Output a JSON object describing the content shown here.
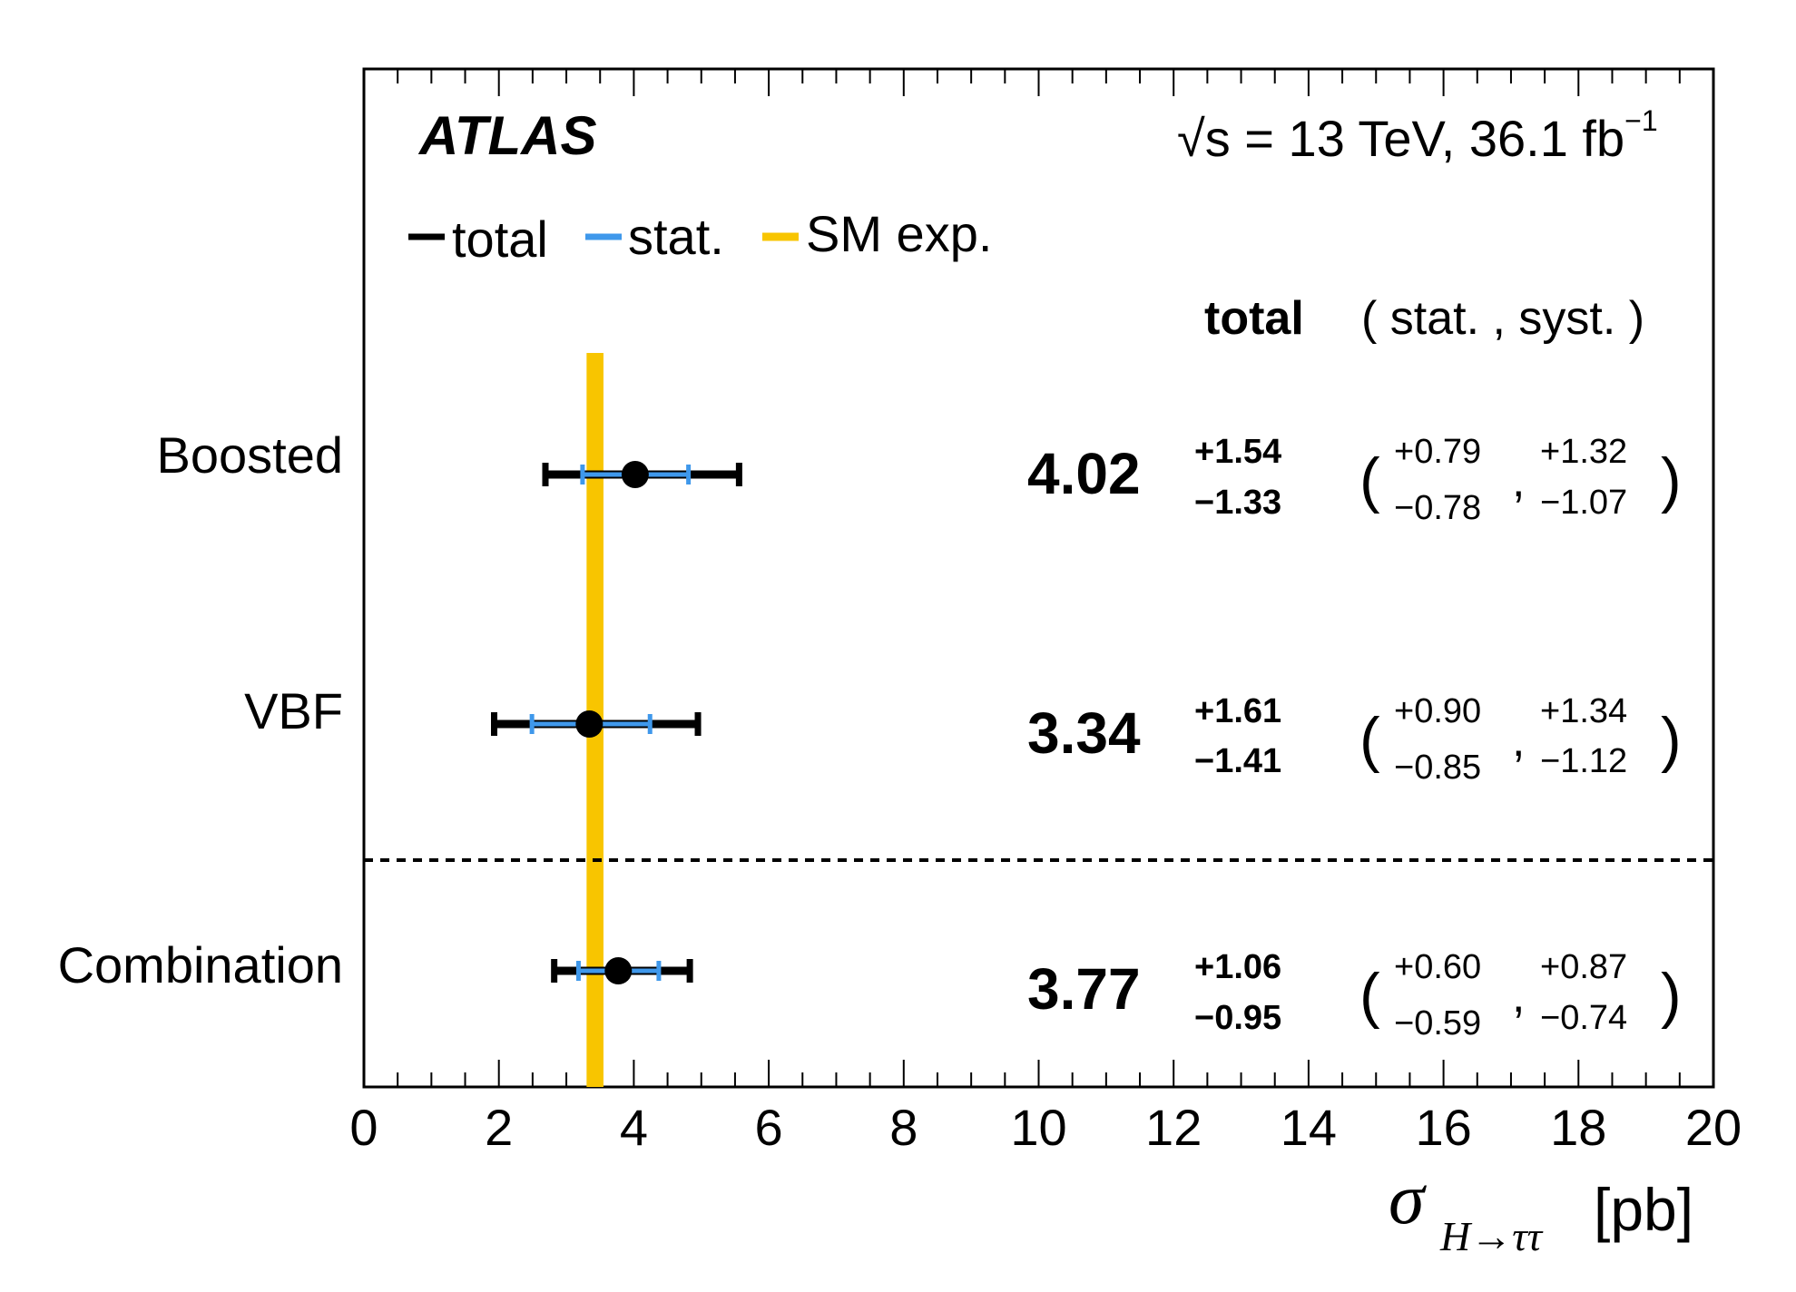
{
  "chart_data": {
    "type": "scatter",
    "experiment": "ATLAS",
    "energy": "√s = 13 TeV, 36.1 fb",
    "energy_exp": "−1",
    "legend": [
      {
        "name": "total",
        "color": "#000000"
      },
      {
        "name": "stat.",
        "color": "#3f98eb"
      },
      {
        "name": "SM exp.",
        "color": "#f8c500"
      }
    ],
    "legend_placement": "top-left",
    "column_header_total": "total",
    "column_header_breakdown": "( stat. , syst. )",
    "xlim": [
      0,
      20
    ],
    "x_ticks": [
      0,
      2,
      4,
      6,
      8,
      10,
      12,
      14,
      16,
      18,
      20
    ],
    "xlabel_symbol": "σ",
    "xlabel_sub": "H→ττ",
    "xlabel_unit": "[pb]",
    "sm_expectation": [
      3.3,
      3.55
    ],
    "entries": [
      {
        "label": "Boosted",
        "value": "4.02",
        "x": 4.02,
        "total_up": "+1.54",
        "total_down": "−1.33",
        "stat_up": "+0.79",
        "stat_down": "−0.78",
        "syst_up": "+1.32",
        "syst_down": "−1.07",
        "tot_err": [
          1.33,
          1.54
        ],
        "stat_err": [
          0.78,
          0.79
        ]
      },
      {
        "label": "VBF",
        "value": "3.34",
        "x": 3.34,
        "total_up": "+1.61",
        "total_down": "−1.41",
        "stat_up": "+0.90",
        "stat_down": "−0.85",
        "syst_up": "+1.34",
        "syst_down": "−1.12",
        "tot_err": [
          1.41,
          1.61
        ],
        "stat_err": [
          0.85,
          0.9
        ]
      },
      {
        "label": "Combination",
        "value": "3.77",
        "x": 3.77,
        "total_up": "+1.06",
        "total_down": "−0.95",
        "stat_up": "+0.60",
        "stat_down": "−0.59",
        "syst_up": "+0.87",
        "syst_down": "−0.74",
        "tot_err": [
          0.95,
          1.06
        ],
        "stat_err": [
          0.59,
          0.6
        ]
      }
    ]
  }
}
